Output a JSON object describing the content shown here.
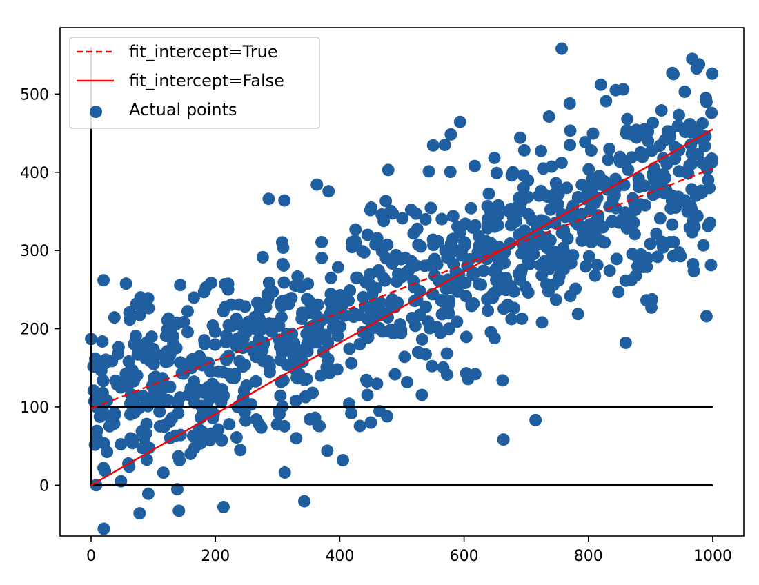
{
  "chart_data": {
    "type": "scatter",
    "title": "",
    "xlabel": "",
    "ylabel": "",
    "xlim": [
      -50,
      1050
    ],
    "ylim": [
      -65,
      585
    ],
    "xticks": [
      0,
      200,
      400,
      600,
      800,
      1000
    ],
    "yticks": [
      0,
      100,
      200,
      300,
      400,
      500
    ],
    "grid": false,
    "legend": {
      "position": "top-left",
      "entries": [
        "fit_intercept=True",
        "fit_intercept=False",
        "Actual points"
      ]
    },
    "series": [
      {
        "name": "fit_intercept=True",
        "kind": "line",
        "style": "dashed",
        "color": "#ff0000",
        "x": [
          0,
          1000
        ],
        "y": [
          98,
          405
        ]
      },
      {
        "name": "fit_intercept=False",
        "kind": "line",
        "style": "solid",
        "color": "#ff0000",
        "x": [
          0,
          1000
        ],
        "y": [
          0,
          455
        ]
      },
      {
        "name": "Actual points",
        "kind": "scatter",
        "color": "#1f5fa0",
        "count": 1000,
        "trend": {
          "slope": 0.307,
          "intercept": 98,
          "noise_sd": 58
        }
      }
    ],
    "reference_lines": [
      {
        "orientation": "horizontal",
        "y": 0,
        "x_range": [
          0,
          1000
        ],
        "color": "#000000"
      },
      {
        "orientation": "horizontal",
        "y": 100,
        "x_range": [
          0,
          1000
        ],
        "color": "#000000"
      },
      {
        "orientation": "vertical",
        "x": 0,
        "y_range": [
          0,
          560
        ],
        "color": "#000000"
      }
    ],
    "notable_points": [
      [
        757,
        558
      ],
      [
        967,
        545
      ],
      [
        978,
        538
      ],
      [
        935,
        527
      ],
      [
        820,
        512
      ],
      [
        955,
        503
      ],
      [
        844,
        505
      ],
      [
        770,
        488
      ],
      [
        990,
        490
      ],
      [
        998,
        476
      ],
      [
        20,
        262
      ],
      [
        478,
        403
      ],
      [
        311,
        364
      ],
      [
        78,
        -36
      ],
      [
        92,
        -11
      ],
      [
        213,
        -28
      ],
      [
        48,
        5
      ],
      [
        20,
        22
      ],
      [
        160,
        40
      ],
      [
        240,
        45
      ],
      [
        380,
        44
      ],
      [
        405,
        32
      ],
      [
        330,
        60
      ],
      [
        210,
        57
      ],
      [
        990,
        216
      ],
      [
        860,
        182
      ],
      [
        662,
        134
      ],
      [
        618,
        142
      ],
      [
        450,
        80
      ],
      [
        0,
        187
      ]
    ]
  }
}
